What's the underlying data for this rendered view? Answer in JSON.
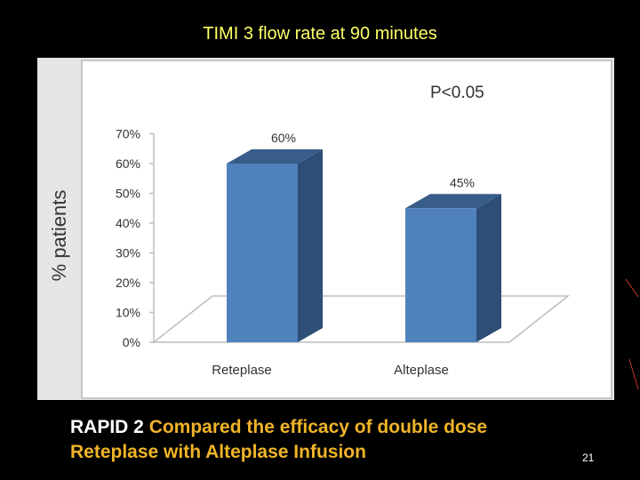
{
  "slide": {
    "title": "TIMI 3 flow rate at 90 minutes",
    "caption_lead": "RAPID 2",
    "caption_rest_line1": " Compared the efficacy of double dose",
    "caption_rest_line2": "Reteplase with Alteplase Infusion",
    "slide_number": "21"
  },
  "colors": {
    "title": "#ffff66",
    "caption_accent": "#f0b429",
    "bar_front": "#4f81bd",
    "bar_side": "#2e4e78",
    "bar_top": "#385d8a"
  },
  "chart_data": {
    "type": "bar",
    "categories": [
      "Reteplase",
      "Alteplase"
    ],
    "values": [
      60,
      45
    ],
    "value_labels": [
      "60%",
      "45%"
    ],
    "ylabel": "% patients",
    "ylim": [
      0,
      70
    ],
    "yticks": [
      0,
      10,
      20,
      30,
      40,
      50,
      60,
      70
    ],
    "ytick_labels": [
      "0%",
      "10%",
      "20%",
      "30%",
      "40%",
      "50%",
      "60%",
      "70%"
    ],
    "annotation": "P<0.05",
    "grid": false,
    "legend": "none",
    "style": "3d-column"
  }
}
